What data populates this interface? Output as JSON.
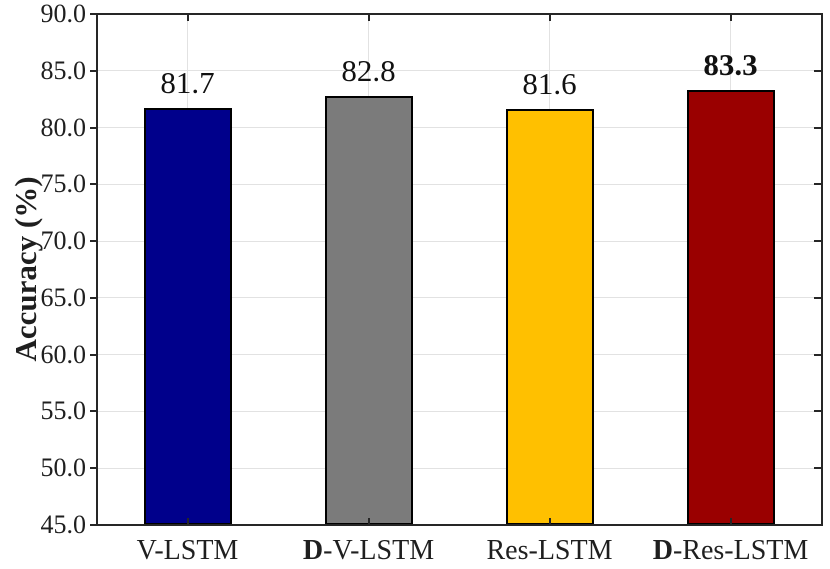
{
  "chart_data": {
    "type": "bar",
    "title": "",
    "xlabel": "",
    "ylabel": "Accuracy (%)",
    "ylim": [
      45,
      90
    ],
    "ytick_step": 5,
    "ytick_labels": [
      "45.0",
      "50.0",
      "55.0",
      "60.0",
      "65.0",
      "70.0",
      "75.0",
      "80.0",
      "85.0",
      "90.0"
    ],
    "grid": true,
    "legend": "none",
    "categories": [
      {
        "bold_prefix": "",
        "text": "V-LSTM"
      },
      {
        "bold_prefix": "D",
        "text": "-V-LSTM"
      },
      {
        "bold_prefix": "",
        "text": "Res-LSTM"
      },
      {
        "bold_prefix": "D",
        "text": "-Res-LSTM"
      }
    ],
    "values": [
      81.7,
      82.8,
      81.6,
      83.3
    ],
    "value_labels": [
      {
        "text": "81.7",
        "bold": false
      },
      {
        "text": "82.8",
        "bold": false
      },
      {
        "text": "81.6",
        "bold": false
      },
      {
        "text": "83.3",
        "bold": true
      }
    ],
    "bar_colors": [
      "#00008B",
      "#7B7B7B",
      "#FFC000",
      "#9A0000"
    ],
    "bar_edge_color": "#000000",
    "axis_color": "#262626",
    "grid_color": "#E2E2E2",
    "text_color": "#1F1F1F"
  }
}
